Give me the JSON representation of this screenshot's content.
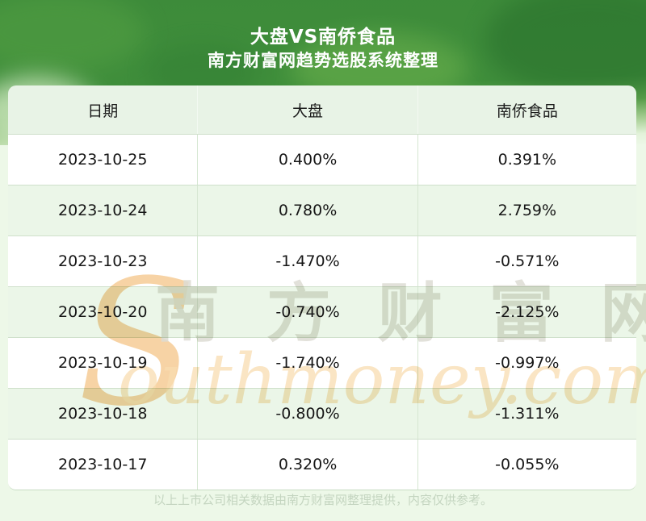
{
  "banner": {
    "title": "大盘VS南侨食品",
    "subtitle": "南方财富网趋势选股系统整理"
  },
  "chart_data": {
    "type": "table",
    "title": "大盘VS南侨食品",
    "subtitle": "南方财富网趋势选股系统整理",
    "columns": [
      "日期",
      "大盘",
      "南侨食品"
    ],
    "rows": [
      [
        "2023-10-25",
        "0.400%",
        "0.391%"
      ],
      [
        "2023-10-24",
        "0.780%",
        "2.759%"
      ],
      [
        "2023-10-23",
        "-1.470%",
        "-0.571%"
      ],
      [
        "2023-10-20",
        "-0.740%",
        "-2.125%"
      ],
      [
        "2023-10-19",
        "-1.740%",
        "-0.997%"
      ],
      [
        "2023-10-18",
        "-0.800%",
        "-1.311%"
      ],
      [
        "2023-10-17",
        "0.320%",
        "-0.055%"
      ]
    ],
    "categories": [
      "2023-10-25",
      "2023-10-24",
      "2023-10-23",
      "2023-10-20",
      "2023-10-19",
      "2023-10-18",
      "2023-10-17"
    ],
    "series": [
      {
        "name": "大盘",
        "values": [
          0.4,
          0.78,
          -1.47,
          -0.74,
          -1.74,
          -0.8,
          0.32
        ]
      },
      {
        "name": "南侨食品",
        "values": [
          0.391,
          2.759,
          -0.571,
          -2.125,
          -0.997,
          -1.311,
          -0.055
        ]
      }
    ],
    "unit": "%",
    "legend_position": "none",
    "grid": true
  },
  "watermark": {
    "swash": "S",
    "cn": "南 方 财 富 网",
    "en": "outhmoney.com"
  },
  "footer": {
    "note": "以上上市公司相关数据由南方财富网整理提供，内容仅供参考。"
  },
  "colors": {
    "banner_green": "#3f8e3b",
    "page_background": "#edf8e8",
    "header_row_bg": "#e8f3e6",
    "alt_row_bg": "#ebf6e8",
    "row_divider": "#cfe0cb",
    "watermark_orange": "#f6c98f",
    "watermark_gray": "#dddcd4",
    "footer_text": "#c4d5c0",
    "table_text": "#161616"
  }
}
